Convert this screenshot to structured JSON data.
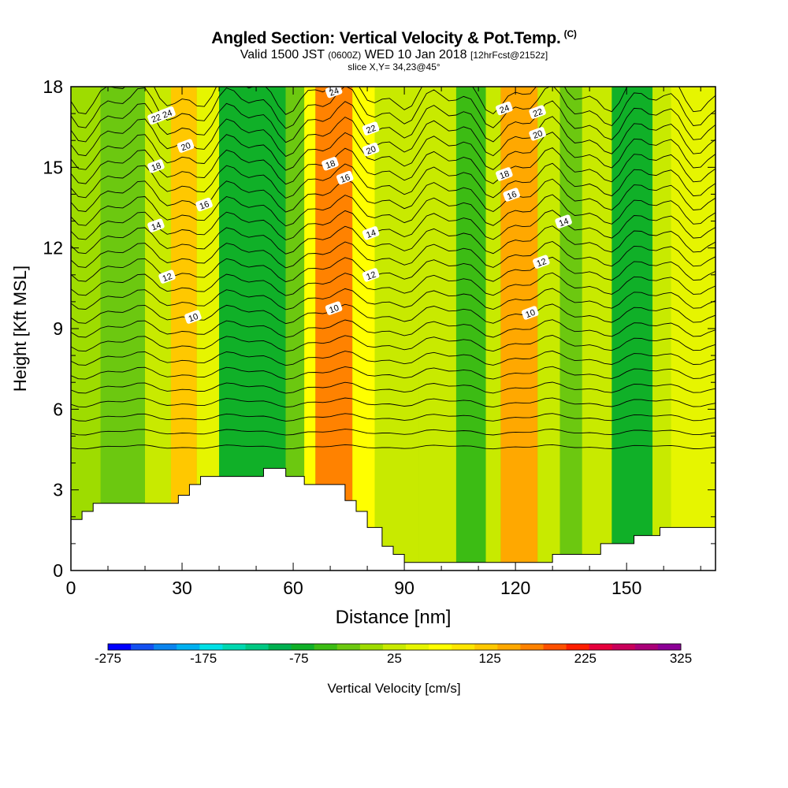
{
  "header": {
    "title": "Angled Section: Vertical Velocity & Pot.Temp.",
    "title_tag": "(C)",
    "valid_prefix": "Valid 1500 JST",
    "valid_utc": "(0600Z)",
    "valid_date": "WED 10 Jan 2018",
    "forecast": "[12hrFcst@2152z]",
    "slice": "slice X,Y= 34,23@45°"
  },
  "chart_data": {
    "type": "heatmap",
    "xlabel": "Distance [nm]",
    "ylabel": "Height [Kft MSL]",
    "xlim": [
      0,
      174
    ],
    "ylim": [
      0,
      18
    ],
    "x_ticks": [
      0,
      30,
      60,
      90,
      120,
      150
    ],
    "x_tick_labels": [
      "0",
      "30",
      "60",
      "90",
      "120",
      "150"
    ],
    "y_ticks": [
      0,
      3,
      6,
      9,
      12,
      15,
      18
    ],
    "y_tick_labels": [
      "0",
      "3",
      "6",
      "9",
      "12",
      "15",
      "18"
    ],
    "colorbar": {
      "title": "Vertical Velocity [cm/s]",
      "min": -275,
      "max": 325,
      "step": 25,
      "tick_values": [
        -275,
        -175,
        -75,
        25,
        125,
        225,
        325
      ],
      "tick_labels": [
        "-275",
        "-175",
        "-75",
        "25",
        "125",
        "225",
        "325"
      ],
      "colors": [
        "#0000ff",
        "#1450f0",
        "#0a84ee",
        "#00b0f0",
        "#00e0e6",
        "#00d8b0",
        "#00c882",
        "#00b050",
        "#10b028",
        "#3cbc14",
        "#6cc810",
        "#9edc00",
        "#c8ea00",
        "#e6f500",
        "#ffff00",
        "#ffe600",
        "#ffc800",
        "#ffa800",
        "#ff8200",
        "#ff5000",
        "#ff1e00",
        "#e6003c",
        "#c8005a",
        "#aa0078",
        "#8c0096"
      ]
    },
    "velocity_bands": [
      {
        "x_min": 0,
        "x_max": 8,
        "value": 0
      },
      {
        "x_min": 8,
        "x_max": 20,
        "value": -25
      },
      {
        "x_min": 20,
        "x_max": 27,
        "value": 25
      },
      {
        "x_min": 27,
        "x_max": 34,
        "value": 125
      },
      {
        "x_min": 34,
        "x_max": 40,
        "value": 50
      },
      {
        "x_min": 40,
        "x_max": 58,
        "value": -75
      },
      {
        "x_min": 58,
        "x_max": 63,
        "value": -25
      },
      {
        "x_min": 63,
        "x_max": 66,
        "value": 75
      },
      {
        "x_min": 66,
        "x_max": 76,
        "value": 175
      },
      {
        "x_min": 76,
        "x_max": 82,
        "value": 75
      },
      {
        "x_min": 82,
        "x_max": 94,
        "value": 25
      },
      {
        "x_min": 94,
        "x_max": 104,
        "value": 25
      },
      {
        "x_min": 104,
        "x_max": 112,
        "value": -50
      },
      {
        "x_min": 112,
        "x_max": 116,
        "value": 25
      },
      {
        "x_min": 116,
        "x_max": 126,
        "value": 150
      },
      {
        "x_min": 126,
        "x_max": 132,
        "value": 25
      },
      {
        "x_min": 132,
        "x_max": 138,
        "value": -25
      },
      {
        "x_min": 138,
        "x_max": 146,
        "value": 25
      },
      {
        "x_min": 146,
        "x_max": 157,
        "value": -75
      },
      {
        "x_min": 157,
        "x_max": 162,
        "value": 25
      },
      {
        "x_min": 162,
        "x_max": 174,
        "value": 50
      }
    ],
    "terrain": [
      [
        0,
        1.9
      ],
      [
        3,
        2.2
      ],
      [
        6,
        2.5
      ],
      [
        15,
        2.5
      ],
      [
        24,
        2.5
      ],
      [
        29,
        2.8
      ],
      [
        32,
        3.2
      ],
      [
        35,
        3.5
      ],
      [
        45,
        3.5
      ],
      [
        52,
        3.8
      ],
      [
        58,
        3.5
      ],
      [
        63,
        3.2
      ],
      [
        71,
        3.2
      ],
      [
        74,
        2.6
      ],
      [
        77,
        2.2
      ],
      [
        80,
        1.6
      ],
      [
        84,
        0.9
      ],
      [
        87,
        0.6
      ],
      [
        90,
        0.3
      ],
      [
        108,
        0.3
      ],
      [
        129,
        0.3
      ],
      [
        130,
        0.6
      ],
      [
        142,
        0.6
      ],
      [
        143,
        1.0
      ],
      [
        151,
        1.0
      ],
      [
        152,
        1.3
      ],
      [
        158,
        1.3
      ],
      [
        159,
        1.6
      ],
      [
        174,
        1.6
      ]
    ],
    "isentropes": [
      {
        "base": 9.6,
        "label": "10",
        "label_positions": [
          33,
          71,
          124
        ]
      },
      {
        "base": 11.2,
        "label": "12",
        "label_positions": [
          26,
          81,
          127
        ]
      },
      {
        "base": 12.8,
        "label": "14",
        "label_positions": [
          23,
          81,
          133
        ]
      },
      {
        "base": 14.0,
        "label": "16",
        "label_positions": [
          36,
          74,
          119
        ]
      },
      {
        "base": 15.0,
        "label": "18",
        "label_positions": [
          23,
          70,
          117
        ]
      },
      {
        "base": 16.0,
        "label": "20",
        "label_positions": [
          31,
          81,
          126
        ]
      },
      {
        "base": 16.8,
        "label": "22",
        "label_positions": [
          23,
          81,
          126
        ]
      },
      {
        "base": 17.5,
        "label": "24",
        "label_positions": [
          26,
          71,
          117
        ]
      }
    ],
    "isentrope_profile_note": "",
    "units": {
      "velocity": "cm/s",
      "height": "Kft MSL",
      "distance": "nm"
    }
  }
}
